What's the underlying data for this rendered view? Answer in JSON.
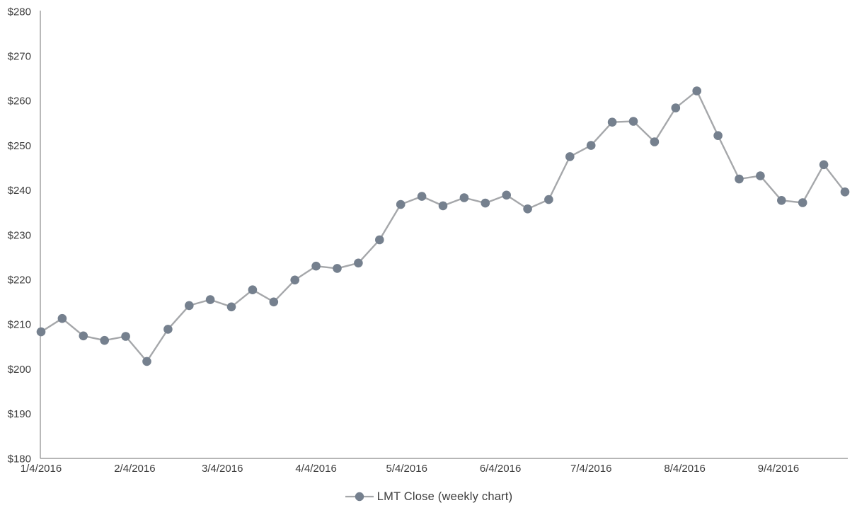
{
  "chart_data": {
    "type": "line",
    "title": "",
    "xlabel": "",
    "ylabel": "",
    "ylim": [
      180,
      280
    ],
    "grid": "off",
    "legend_position": "bottom",
    "y_tick_prefix": "$",
    "y_ticks": [
      180,
      190,
      200,
      210,
      220,
      230,
      240,
      250,
      260,
      270,
      280
    ],
    "x_tick_labels": [
      "1/4/2016",
      "2/4/2016",
      "3/4/2016",
      "4/4/2016",
      "5/4/2016",
      "6/4/2016",
      "7/4/2016",
      "8/4/2016",
      "9/4/2016"
    ],
    "series": [
      {
        "name": "LMT Close (weekly chart)",
        "x": [
          "1/4/2016",
          "1/11/2016",
          "1/18/2016",
          "1/25/2016",
          "2/1/2016",
          "2/8/2016",
          "2/15/2016",
          "2/22/2016",
          "2/29/2016",
          "3/7/2016",
          "3/14/2016",
          "3/21/2016",
          "3/28/2016",
          "4/4/2016",
          "4/11/2016",
          "4/18/2016",
          "4/25/2016",
          "5/2/2016",
          "5/9/2016",
          "5/16/2016",
          "5/23/2016",
          "5/30/2016",
          "6/6/2016",
          "6/13/2016",
          "6/20/2016",
          "6/27/2016",
          "7/4/2016",
          "7/11/2016",
          "7/18/2016",
          "7/25/2016",
          "8/1/2016",
          "8/8/2016",
          "8/15/2016",
          "8/22/2016",
          "8/29/2016",
          "9/5/2016",
          "9/12/2016",
          "9/19/2016",
          "9/26/2016"
        ],
        "values": [
          208.3,
          211.3,
          207.4,
          206.4,
          207.3,
          201.7,
          208.9,
          214.2,
          215.5,
          213.9,
          217.7,
          215.0,
          219.9,
          223.0,
          222.5,
          223.7,
          228.9,
          236.8,
          238.6,
          236.5,
          238.3,
          237.1,
          238.9,
          235.8,
          237.9,
          247.5,
          250.0,
          255.2,
          255.4,
          250.8,
          258.4,
          262.2,
          252.2,
          242.5,
          243.2,
          237.7,
          237.2,
          245.7,
          239.6
        ]
      }
    ],
    "colors": {
      "line": "#a5a7aa",
      "marker": "#75808e",
      "axis": "#8a8a8a",
      "tick_text": "#3d3d3d"
    }
  },
  "legend": {
    "label": "LMT Close (weekly chart)"
  }
}
